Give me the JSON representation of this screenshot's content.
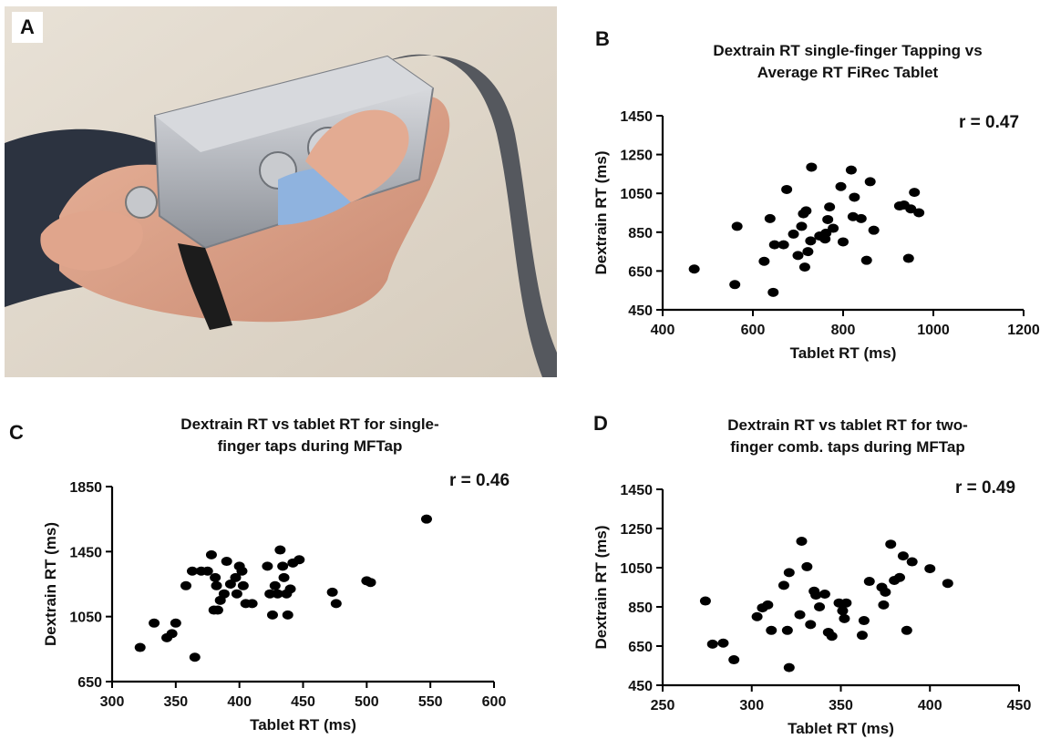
{
  "figure": {
    "panels": [
      {
        "letter": "A"
      },
      {
        "letter": "B"
      },
      {
        "letter": "C"
      },
      {
        "letter": "D"
      }
    ]
  },
  "colors": {
    "marker": "#000000",
    "axis": "#000000",
    "background": "#ffffff"
  },
  "chart_data": [
    {
      "panel": "B",
      "type": "scatter",
      "title_lines": [
        "Dextrain RT single-finger Tapping vs",
        "Average RT FiRec Tablet"
      ],
      "xlabel": "Tablet RT (ms)",
      "ylabel": "Dextrain RT (ms)",
      "annotation": "r = 0.47",
      "xlim": [
        400,
        1200
      ],
      "ylim": [
        450,
        1450
      ],
      "xticks": [
        400,
        600,
        800,
        1000,
        1200
      ],
      "yticks": [
        450,
        650,
        850,
        1050,
        1250,
        1450
      ],
      "grid": false,
      "points": [
        [
          470,
          660
        ],
        [
          560,
          580
        ],
        [
          565,
          880
        ],
        [
          625,
          700
        ],
        [
          638,
          920
        ],
        [
          645,
          540
        ],
        [
          648,
          785
        ],
        [
          668,
          785
        ],
        [
          675,
          1070
        ],
        [
          690,
          840
        ],
        [
          700,
          730
        ],
        [
          708,
          880
        ],
        [
          712,
          945
        ],
        [
          715,
          670
        ],
        [
          718,
          960
        ],
        [
          722,
          750
        ],
        [
          728,
          805
        ],
        [
          730,
          1185
        ],
        [
          748,
          830
        ],
        [
          760,
          815
        ],
        [
          762,
          845
        ],
        [
          766,
          915
        ],
        [
          770,
          980
        ],
        [
          778,
          870
        ],
        [
          795,
          1085
        ],
        [
          800,
          800
        ],
        [
          818,
          1170
        ],
        [
          822,
          930
        ],
        [
          825,
          1030
        ],
        [
          840,
          920
        ],
        [
          852,
          705
        ],
        [
          860,
          1110
        ],
        [
          868,
          860
        ],
        [
          925,
          985
        ],
        [
          935,
          990
        ],
        [
          945,
          715
        ],
        [
          950,
          970
        ],
        [
          958,
          1055
        ],
        [
          968,
          950
        ]
      ]
    },
    {
      "panel": "C",
      "type": "scatter",
      "title_lines": [
        "Dextrain RT vs tablet RT for single-",
        "finger taps during  MFTap"
      ],
      "xlabel": "Tablet RT (ms)",
      "ylabel": "Dextrain RT (ms)",
      "annotation": "r = 0.46",
      "xlim": [
        300,
        600
      ],
      "ylim": [
        650,
        1850
      ],
      "xticks": [
        300,
        350,
        400,
        450,
        500,
        550,
        600
      ],
      "yticks": [
        650,
        1050,
        1450,
        1850
      ],
      "grid": false,
      "points": [
        [
          322,
          860
        ],
        [
          333,
          1010
        ],
        [
          343,
          920
        ],
        [
          347,
          945
        ],
        [
          350,
          1010
        ],
        [
          358,
          1240
        ],
        [
          363,
          1330
        ],
        [
          365,
          800
        ],
        [
          370,
          1330
        ],
        [
          375,
          1330
        ],
        [
          378,
          1430
        ],
        [
          380,
          1090
        ],
        [
          381,
          1290
        ],
        [
          382,
          1240
        ],
        [
          383,
          1090
        ],
        [
          385,
          1150
        ],
        [
          388,
          1190
        ],
        [
          390,
          1390
        ],
        [
          393,
          1250
        ],
        [
          397,
          1290
        ],
        [
          398,
          1190
        ],
        [
          400,
          1360
        ],
        [
          402,
          1330
        ],
        [
          403,
          1240
        ],
        [
          405,
          1130
        ],
        [
          410,
          1130
        ],
        [
          422,
          1360
        ],
        [
          424,
          1190
        ],
        [
          426,
          1060
        ],
        [
          428,
          1240
        ],
        [
          430,
          1190
        ],
        [
          432,
          1460
        ],
        [
          434,
          1360
        ],
        [
          435,
          1290
        ],
        [
          437,
          1190
        ],
        [
          438,
          1060
        ],
        [
          440,
          1220
        ],
        [
          442,
          1380
        ],
        [
          447,
          1400
        ],
        [
          473,
          1200
        ],
        [
          476,
          1130
        ],
        [
          500,
          1270
        ],
        [
          503,
          1260
        ],
        [
          547,
          1650
        ]
      ]
    },
    {
      "panel": "D",
      "type": "scatter",
      "title_lines": [
        "Dextrain RT vs tablet RT for two-",
        "finger comb. taps during  MFTap"
      ],
      "xlabel": "Tablet RT (ms)",
      "ylabel": "Dextrain RT (ms)",
      "annotation": "r = 0.49",
      "xlim": [
        250,
        450
      ],
      "ylim": [
        450,
        1450
      ],
      "xticks": [
        250,
        300,
        350,
        400,
        450
      ],
      "yticks": [
        450,
        650,
        850,
        1050,
        1250,
        1450
      ],
      "grid": false,
      "points": [
        [
          274,
          880
        ],
        [
          278,
          660
        ],
        [
          284,
          665
        ],
        [
          290,
          580
        ],
        [
          303,
          800
        ],
        [
          306,
          845
        ],
        [
          309,
          860
        ],
        [
          311,
          730
        ],
        [
          318,
          960
        ],
        [
          320,
          730
        ],
        [
          321,
          1025
        ],
        [
          321,
          540
        ],
        [
          327,
          810
        ],
        [
          328,
          1185
        ],
        [
          331,
          1055
        ],
        [
          333,
          760
        ],
        [
          335,
          930
        ],
        [
          336,
          910
        ],
        [
          338,
          850
        ],
        [
          341,
          915
        ],
        [
          343,
          720
        ],
        [
          345,
          700
        ],
        [
          349,
          870
        ],
        [
          351,
          830
        ],
        [
          352,
          790
        ],
        [
          353,
          870
        ],
        [
          362,
          705
        ],
        [
          363,
          780
        ],
        [
          366,
          980
        ],
        [
          373,
          950
        ],
        [
          374,
          860
        ],
        [
          375,
          925
        ],
        [
          378,
          1170
        ],
        [
          380,
          985
        ],
        [
          383,
          1000
        ],
        [
          385,
          1110
        ],
        [
          387,
          730
        ],
        [
          390,
          1080
        ],
        [
          400,
          1045
        ],
        [
          410,
          970
        ]
      ]
    }
  ]
}
